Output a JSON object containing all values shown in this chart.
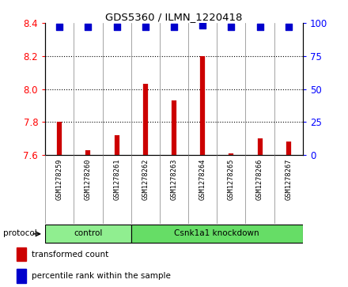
{
  "title": "GDS5360 / ILMN_1220418",
  "samples": [
    "GSM1278259",
    "GSM1278260",
    "GSM1278261",
    "GSM1278262",
    "GSM1278263",
    "GSM1278264",
    "GSM1278265",
    "GSM1278266",
    "GSM1278267"
  ],
  "transformed_count": [
    7.8,
    7.63,
    7.72,
    8.03,
    7.93,
    8.2,
    7.61,
    7.7,
    7.68
  ],
  "percentile_rank": [
    97,
    97,
    97,
    97,
    97,
    98,
    97,
    97,
    97
  ],
  "ylim_left": [
    7.6,
    8.4
  ],
  "yticks_left": [
    7.6,
    7.8,
    8.0,
    8.2,
    8.4
  ],
  "ylim_right": [
    0,
    100
  ],
  "yticks_right": [
    0,
    25,
    50,
    75,
    100
  ],
  "bar_color": "#cc0000",
  "dot_color": "#0000cc",
  "groups": [
    {
      "label": "control",
      "start": 0,
      "end": 3,
      "color": "#90ee90"
    },
    {
      "label": "Csnk1a1 knockdown",
      "start": 3,
      "end": 9,
      "color": "#66dd66"
    }
  ],
  "protocol_label": "protocol",
  "legend_items": [
    {
      "label": "transformed count",
      "color": "#cc0000"
    },
    {
      "label": "percentile rank within the sample",
      "color": "#0000cc"
    }
  ],
  "grid_color": "black",
  "dot_size": 28,
  "ybase": 7.6,
  "bg_color": "#d4d4d4"
}
